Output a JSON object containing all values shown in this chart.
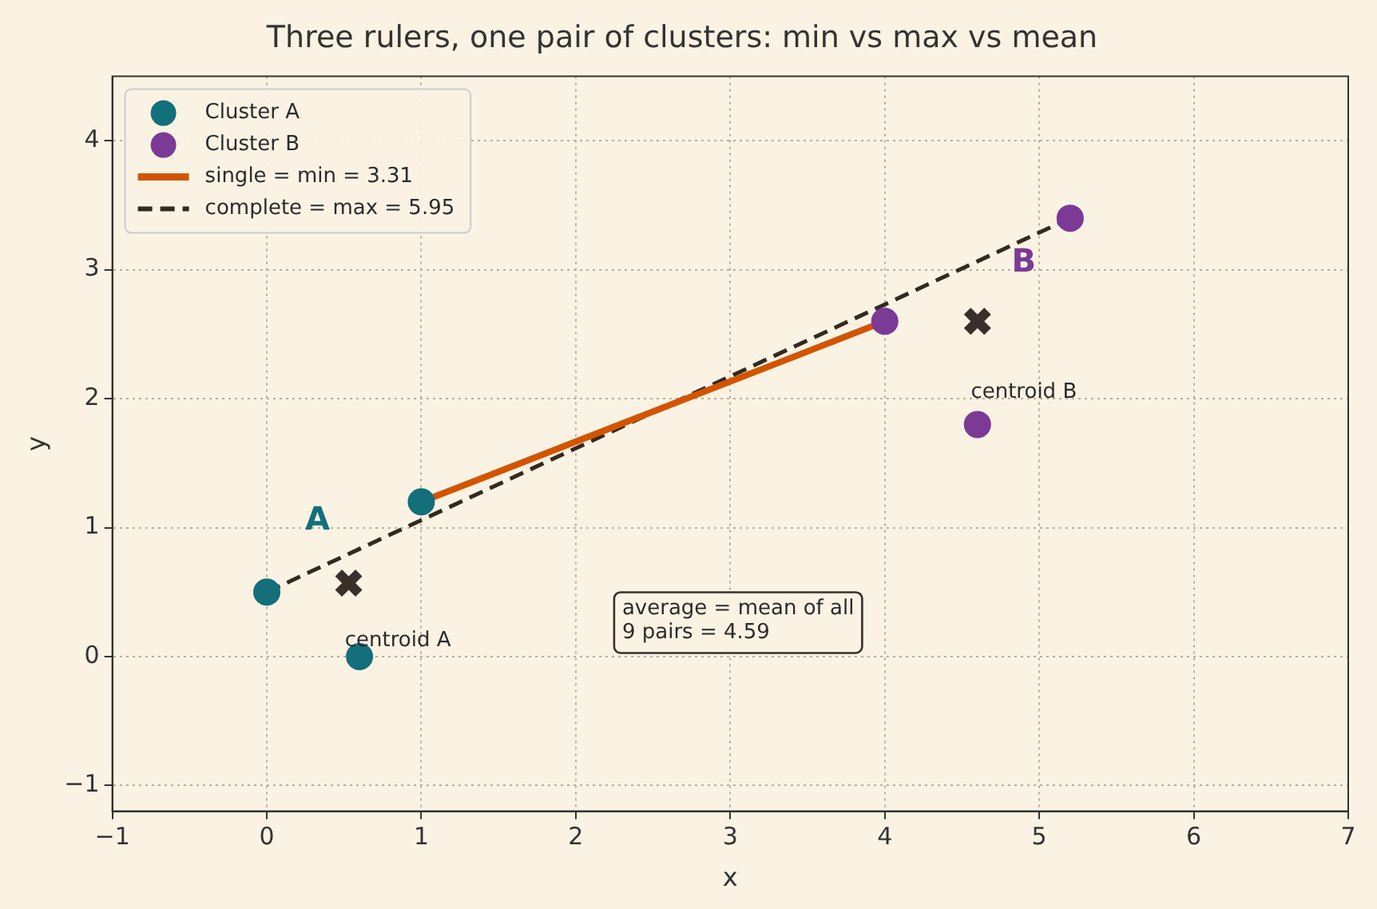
{
  "chart_data": {
    "type": "scatter",
    "title": "Three rulers, one pair of clusters: min vs max vs mean",
    "xlabel": "x",
    "ylabel": "y",
    "xlim": [
      -1,
      7
    ],
    "xticks": [
      -1,
      0,
      1,
      2,
      3,
      4,
      5,
      6,
      7
    ],
    "ylim": [
      -1.2,
      4.5
    ],
    "yticks": [
      -1,
      0,
      1,
      2,
      3,
      4
    ],
    "grid": true,
    "legend": "top left",
    "marker": "circle",
    "series": [
      {
        "name": "Cluster A",
        "color": "#136f7a",
        "x": [
          0,
          1,
          0.6
        ],
        "values": [
          0.5,
          1.2,
          0
        ]
      },
      {
        "name": "Cluster B",
        "color": "#7b3a96",
        "x": [
          4,
          5.2,
          4.6
        ],
        "values": [
          2.6,
          3.4,
          1.8
        ]
      },
      {
        "name": "single = min = 3.31",
        "type": "line",
        "color": "#d35400",
        "line_style": "solid",
        "marker": "none",
        "x": [
          1,
          4
        ],
        "values": [
          1.2,
          2.6
        ]
      },
      {
        "name": "complete = max = 5.95",
        "type": "line",
        "color": "#33291f",
        "line_style": "dashed",
        "marker": "none",
        "x": [
          0,
          5.2
        ],
        "values": [
          0.5,
          3.4
        ]
      },
      {
        "color": "#3a2f2a",
        "marker": "cross",
        "x": [
          0.53,
          4.6
        ],
        "values": [
          0.57,
          2.6
        ]
      }
    ],
    "annotations": [
      "A",
      "B",
      "centroid A",
      "centroid B",
      "average = mean of all\n9 pairs = 4.59"
    ]
  }
}
